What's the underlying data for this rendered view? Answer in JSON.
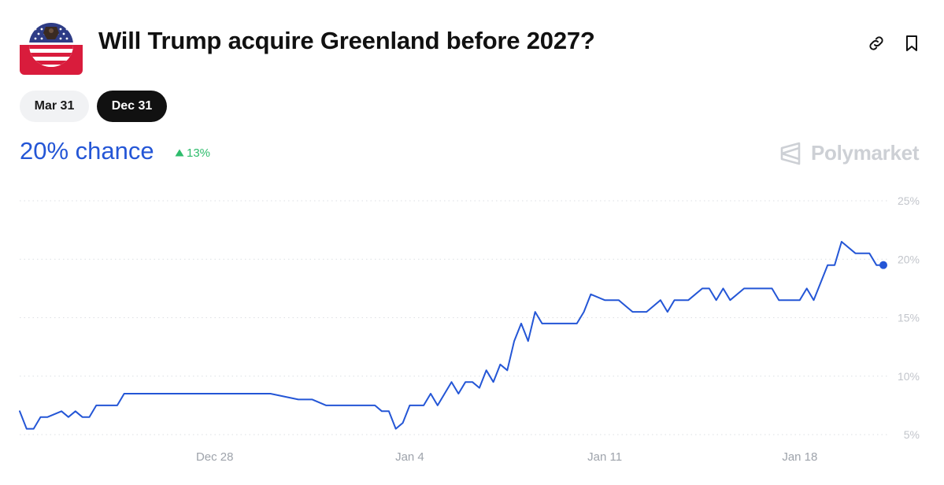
{
  "header": {
    "title": "Will Trump acquire Greenland before 2027?",
    "icons": [
      "flag-avatar-icon",
      "link-icon",
      "bookmark-icon"
    ]
  },
  "tabs": [
    {
      "label": "Mar 31",
      "selected": false
    },
    {
      "label": "Dec 31",
      "selected": true
    }
  ],
  "summary": {
    "chance_label": "20% chance",
    "change_label": "13%",
    "change_direction": "up"
  },
  "brand": {
    "name": "Polymarket",
    "icon": "polymarket-logo-icon"
  },
  "colors": {
    "line": "#2456d6",
    "chance_text": "#2456d6",
    "change_positive": "#2ebc6c",
    "selected_tab_bg": "#111111",
    "unselected_tab_bg": "#f1f2f4",
    "brand_text": "#cdd0d5",
    "grid": "#dcdfe3"
  },
  "chart_data": {
    "type": "line",
    "title": "",
    "xlabel": "",
    "ylabel": "",
    "ylim": [
      5,
      25
    ],
    "y_ticks": [
      5,
      10,
      15,
      20,
      25
    ],
    "y_tick_labels": [
      "5%",
      "10%",
      "15%",
      "20%",
      "25%"
    ],
    "x_range": [
      "2024-12-21",
      "2025-01-21"
    ],
    "x_tick_dates": [
      "2024-12-28",
      "2025-01-04",
      "2025-01-11",
      "2025-01-18"
    ],
    "x_tick_labels": [
      "Dec 28",
      "Jan 4",
      "Jan 11",
      "Jan 18"
    ],
    "grid": "horizontal dotted",
    "legend": "none",
    "last_point_marker": true,
    "series": [
      {
        "name": "",
        "x": [
          "2024-12-21 00:00",
          "2024-12-21 06:00",
          "2024-12-21 12:00",
          "2024-12-21 18:00",
          "2024-12-22 00:00",
          "2024-12-22 12:00",
          "2024-12-22 18:00",
          "2024-12-23 00:00",
          "2024-12-23 06:00",
          "2024-12-23 12:00",
          "2024-12-23 18:00",
          "2024-12-24 00:00",
          "2024-12-24 12:00",
          "2024-12-24 18:00",
          "2024-12-25 00:00",
          "2024-12-25 18:00",
          "2024-12-26 00:00",
          "2024-12-26 18:00",
          "2024-12-27 00:00",
          "2024-12-30 00:00",
          "2024-12-31 00:00",
          "2024-12-31 12:00",
          "2025-01-01 00:00",
          "2025-01-01 12:00",
          "2025-01-02 00:00",
          "2025-01-02 12:00",
          "2025-01-02 18:00",
          "2025-01-03 00:00",
          "2025-01-03 06:00",
          "2025-01-03 12:00",
          "2025-01-03 18:00",
          "2025-01-04 00:00",
          "2025-01-04 12:00",
          "2025-01-04 18:00",
          "2025-01-05 00:00",
          "2025-01-05 06:00",
          "2025-01-05 12:00",
          "2025-01-05 18:00",
          "2025-01-06 00:00",
          "2025-01-06 06:00",
          "2025-01-06 12:00",
          "2025-01-06 18:00",
          "2025-01-07 00:00",
          "2025-01-07 06:00",
          "2025-01-07 12:00",
          "2025-01-07 18:00",
          "2025-01-08 00:00",
          "2025-01-08 06:00",
          "2025-01-08 12:00",
          "2025-01-08 18:00",
          "2025-01-09 00:00",
          "2025-01-09 06:00",
          "2025-01-09 12:00",
          "2025-01-10 00:00",
          "2025-01-10 06:00",
          "2025-01-10 12:00",
          "2025-01-11 00:00",
          "2025-01-11 12:00",
          "2025-01-12 00:00",
          "2025-01-12 12:00",
          "2025-01-13 00:00",
          "2025-01-13 06:00",
          "2025-01-13 12:00",
          "2025-01-14 00:00",
          "2025-01-14 12:00",
          "2025-01-14 18:00",
          "2025-01-15 00:00",
          "2025-01-15 06:00",
          "2025-01-15 12:00",
          "2025-01-16 00:00",
          "2025-01-16 12:00",
          "2025-01-17 00:00",
          "2025-01-17 06:00",
          "2025-01-17 12:00",
          "2025-01-17 18:00",
          "2025-01-18 00:00",
          "2025-01-18 06:00",
          "2025-01-18 12:00",
          "2025-01-19 00:00",
          "2025-01-19 06:00",
          "2025-01-19 12:00",
          "2025-01-20 00:00",
          "2025-01-20 06:00",
          "2025-01-20 12:00",
          "2025-01-20 18:00",
          "2025-01-21 00:00"
        ],
        "values": [
          7,
          5.5,
          5.5,
          6.5,
          6.5,
          7,
          6.5,
          7,
          6.5,
          6.5,
          7.5,
          7.5,
          7.5,
          8.5,
          8.5,
          8.5,
          8.5,
          8.5,
          8.5,
          8.5,
          8,
          8,
          7.5,
          7.5,
          7.5,
          7.5,
          7.5,
          7,
          7,
          5.5,
          6,
          7.5,
          7.5,
          8.5,
          7.5,
          8.5,
          9.5,
          8.5,
          9.5,
          9.5,
          9,
          10.5,
          9.5,
          11,
          10.5,
          13,
          14.5,
          13,
          15.5,
          14.5,
          14.5,
          14.5,
          14.5,
          14.5,
          15.5,
          17,
          16.5,
          16.5,
          15.5,
          15.5,
          16.5,
          15.5,
          16.5,
          16.5,
          17.5,
          17.5,
          16.5,
          17.5,
          16.5,
          17.5,
          17.5,
          17.5,
          16.5,
          16.5,
          16.5,
          16.5,
          17.5,
          16.5,
          19.5,
          19.5,
          21.5,
          20.5,
          20.5,
          20.5,
          19.5,
          19.5
        ]
      }
    ]
  }
}
